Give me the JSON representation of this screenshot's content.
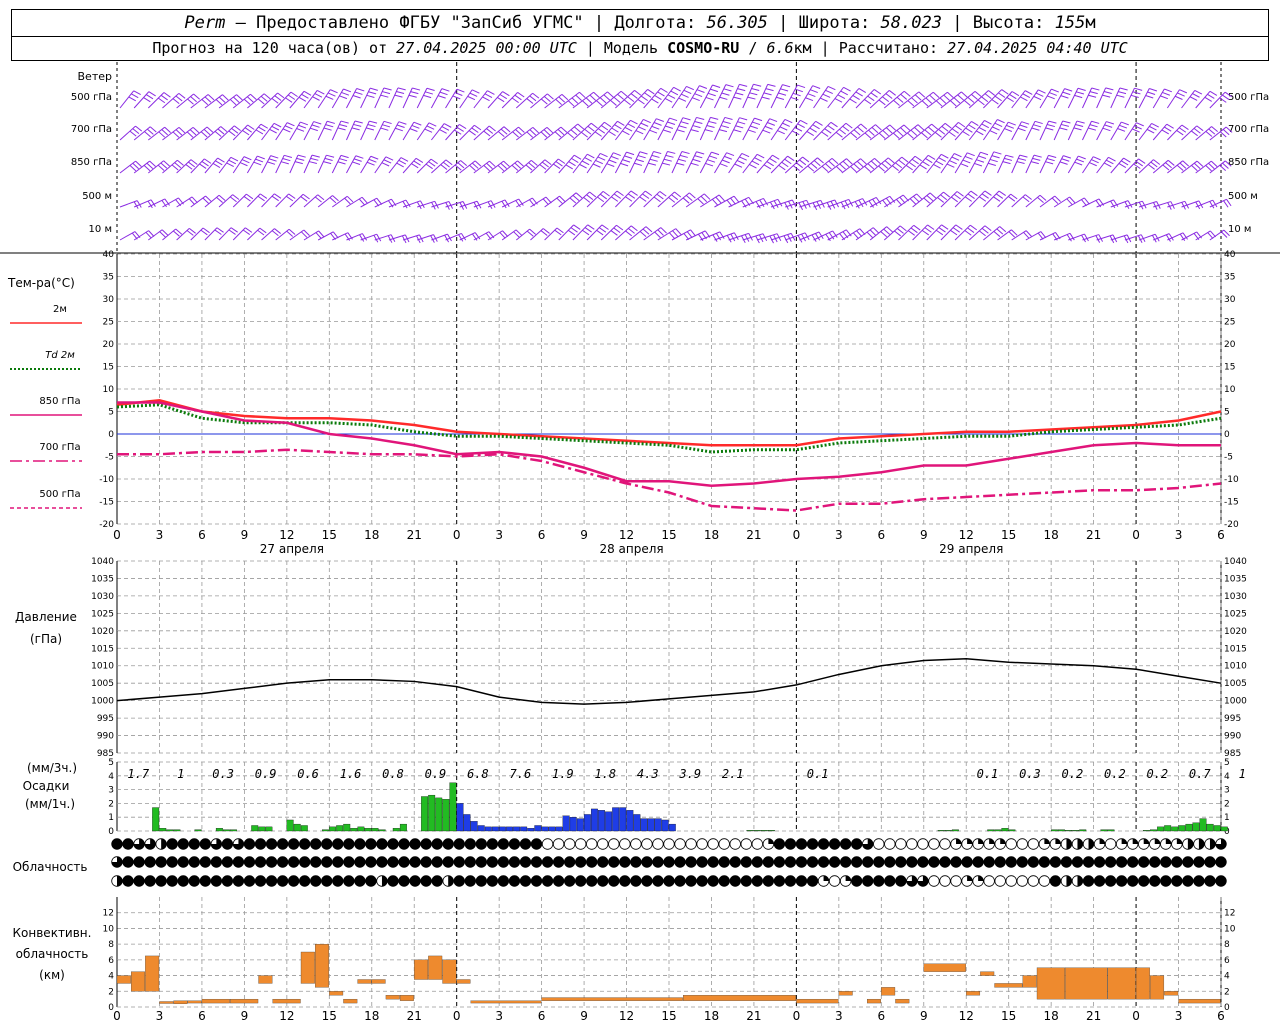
{
  "header": {
    "station": "Perm",
    "provider": "Предоставлено ФГБУ \"ЗапСиб УГМС\"",
    "lon_label": "Долгота:",
    "lon": "56.305",
    "lat_label": "Широта:",
    "lat": "58.023",
    "alt_label": "Высота:",
    "alt": "155",
    "alt_unit": "м",
    "forecast_prefix": "Прогноз на 120 часа(ов) от",
    "forecast_start": "27.04.2025 00:00 UTC",
    "model_label": "Модель",
    "model": "COSMO-RU",
    "resolution": "6.6",
    "resolution_unit": "км",
    "calc_label": "Рассчитано:",
    "calc_time": "27.04.2025 04:40 UTC"
  },
  "colors": {
    "wind": "#8a2be2",
    "t2m": "#ff2a2a",
    "td2m": "#0a7a0a",
    "t850": "#e0157a",
    "t700": "#e0157a",
    "t500": "#e0157a",
    "pressure": "#000000",
    "precip_rain": "#22bb22",
    "precip_heavy": "#1f3de6",
    "convective": "#ee8a2e",
    "zero_line": "#1b2fd9"
  },
  "chart_data": [
    {
      "type": "wind-barbs",
      "title": "Ветер",
      "levels": [
        "500 гПа",
        "700 гПа",
        "850 гПа",
        "500 м",
        "10  м"
      ]
    },
    {
      "type": "line",
      "title": "Тем-ра(°C)",
      "legend": [
        "2м",
        "Td 2м",
        "850 гПа",
        "700 гПа",
        "500 гПа"
      ],
      "ylim": [
        -20,
        40
      ],
      "yticks": [
        -20,
        -15,
        -10,
        -5,
        0,
        5,
        10,
        15,
        20,
        25,
        30,
        35,
        40
      ],
      "x_hours": [
        0,
        3,
        6,
        9,
        12,
        15,
        18,
        21,
        24,
        27,
        30,
        33,
        36,
        39,
        42,
        45,
        48,
        51,
        54,
        57,
        60,
        63,
        66,
        69,
        72,
        75,
        78
      ],
      "x_tick_labels": [
        "0",
        "3",
        "6",
        "9",
        "12",
        "15",
        "18",
        "21",
        "0",
        "3",
        "6",
        "9",
        "12",
        "15",
        "18",
        "21",
        "0",
        "3",
        "6",
        "9",
        "12",
        "15",
        "18",
        "21",
        "0",
        "3",
        "6"
      ],
      "day_labels": [
        "27 апреля",
        "28 апреля",
        "29 апреля"
      ],
      "series": [
        {
          "name": "2м",
          "values": [
            6.5,
            7.5,
            5.0,
            4.0,
            3.5,
            3.5,
            3.0,
            2.0,
            0.5,
            0.0,
            -0.5,
            -1.0,
            -1.5,
            -2.0,
            -2.5,
            -2.5,
            -2.5,
            -1.0,
            -0.5,
            0.0,
            0.5,
            0.5,
            1.0,
            1.5,
            2.0,
            3.0,
            5.0
          ]
        },
        {
          "name": "Td 2м",
          "values": [
            6.0,
            6.5,
            3.5,
            2.5,
            2.5,
            2.5,
            2.0,
            0.5,
            -0.5,
            -0.5,
            -1.0,
            -1.5,
            -2.0,
            -2.5,
            -4.0,
            -3.5,
            -3.5,
            -2.0,
            -1.5,
            -1.0,
            -0.5,
            -0.5,
            0.5,
            1.0,
            1.5,
            2.0,
            3.5
          ]
        },
        {
          "name": "850 гПа",
          "values": [
            7.0,
            7.0,
            5.0,
            3.0,
            2.5,
            0.0,
            -1.0,
            -2.5,
            -4.5,
            -4.0,
            -5.0,
            -7.5,
            -10.5,
            -10.5,
            -11.5,
            -11.0,
            -10.0,
            -9.5,
            -8.5,
            -7.0,
            -7.0,
            -5.5,
            -4.0,
            -2.5,
            -2.0,
            -2.5,
            -2.5
          ]
        },
        {
          "name": "700 гПа",
          "values": [
            -4.5,
            -4.5,
            -4.0,
            -4.0,
            -3.5,
            -4.0,
            -4.5,
            -4.5,
            -5.0,
            -4.5,
            -6.0,
            -8.5,
            -11.0,
            -13.0,
            -16.0,
            -16.5,
            -17.0,
            -15.5,
            -15.5,
            -14.5,
            -14.0,
            -13.5,
            -13.0,
            -12.5,
            -12.5,
            -12.0,
            -11.0
          ]
        },
        {
          "name": "500 гПа",
          "values": []
        }
      ]
    },
    {
      "type": "line",
      "title": "Давление",
      "unit": "(гПа)",
      "ylim": [
        985,
        1040
      ],
      "yticks": [
        985,
        990,
        995,
        1000,
        1005,
        1010,
        1015,
        1020,
        1025,
        1030,
        1035,
        1040
      ],
      "x_hours": [
        0,
        3,
        6,
        9,
        12,
        15,
        18,
        21,
        24,
        27,
        30,
        33,
        36,
        39,
        42,
        45,
        48,
        51,
        54,
        57,
        60,
        63,
        66,
        69,
        72,
        75,
        78
      ],
      "values": [
        1000.0,
        1001.0,
        1002.0,
        1003.5,
        1005.0,
        1006.0,
        1006.0,
        1005.5,
        1004.0,
        1001.0,
        999.5,
        999.0,
        999.5,
        1000.5,
        1001.5,
        1002.5,
        1004.5,
        1007.5,
        1010.0,
        1011.5,
        1012.0,
        1011.0,
        1010.5,
        1010.0,
        1009.0,
        1007.0,
        1005.0
      ]
    },
    {
      "type": "bar",
      "title": "Осадки",
      "units_3h": "(мм/3ч.)",
      "units_1h": "(мм/1ч.)",
      "ylim": [
        0,
        5
      ],
      "totals_3h": [
        "1.7",
        "1",
        "0.3",
        "0.9",
        "0.6",
        "1.6",
        "0.8",
        "0.9",
        "6.8",
        "7.6",
        "1.9",
        "1.8",
        "4.3",
        "3.9",
        "2.1",
        "",
        "0.1",
        "",
        "",
        "",
        "0.1",
        "0.3",
        "0.2",
        "0.2",
        "0.2",
        "0.7",
        "1"
      ],
      "hourly_values": [
        0,
        0,
        0,
        0,
        0,
        1.7,
        0.2,
        0.1,
        0.1,
        0,
        0,
        0.1,
        0,
        0,
        0.2,
        0.1,
        0.1,
        0,
        0,
        0.4,
        0.3,
        0.3,
        0,
        0,
        0.8,
        0.5,
        0.4,
        0,
        0,
        0.1,
        0.3,
        0.4,
        0.5,
        0.2,
        0.3,
        0.2,
        0.2,
        0.1,
        0,
        0.2,
        0.5,
        0,
        0,
        2.5,
        2.6,
        2.4,
        2.3,
        3.5,
        2.0,
        1.2,
        0.7,
        0.4,
        0.3,
        0.3,
        0.3,
        0.3,
        0.3,
        0.3,
        0.2,
        0.4,
        0.3,
        0.3,
        0.3,
        1.1,
        1.0,
        0.9,
        1.2,
        1.6,
        1.5,
        1.4,
        1.7,
        1.7,
        1.5,
        1.2,
        0.9,
        0.9,
        0.9,
        0.8,
        0.5,
        0,
        0,
        0,
        0,
        0,
        0,
        0,
        0,
        0,
        0,
        0.05,
        0.05,
        0.05,
        0.05,
        0,
        0,
        0,
        0,
        0,
        0,
        0,
        0,
        0,
        0,
        0,
        0,
        0,
        0,
        0,
        0,
        0,
        0,
        0,
        0,
        0,
        0,
        0,
        0.05,
        0.05,
        0.1,
        0,
        0,
        0,
        0,
        0.1,
        0.1,
        0.2,
        0.1,
        0,
        0,
        0,
        0,
        0,
        0.1,
        0.1,
        0.05,
        0.05,
        0.1,
        0,
        0,
        0.1,
        0.1,
        0,
        0,
        0,
        0,
        0.05,
        0.1,
        0.3,
        0.4,
        0.3,
        0.4,
        0.5,
        0.6,
        0.9,
        0.5,
        0.4,
        0.3,
        0.4
      ],
      "heavy_range_hours": [
        24,
        44
      ]
    },
    {
      "type": "symbols",
      "title": "Облачность",
      "rows": 3,
      "note": "cloud cover circles per hour: 0 empty, 4 fully filled"
    },
    {
      "type": "bar",
      "title": "Конвективн.",
      "title2": "облачность",
      "unit": "(км)",
      "ylim": [
        0,
        14
      ],
      "yticks": [
        0,
        2,
        4,
        6,
        8,
        10,
        12
      ]
    }
  ]
}
